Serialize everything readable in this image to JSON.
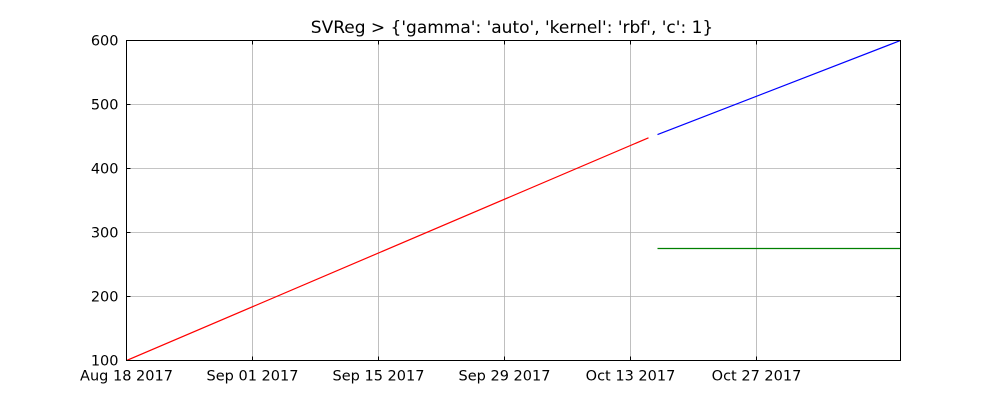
{
  "chart_data": {
    "type": "line",
    "title": "SVReg > {'gamma': 'auto', 'kernel': 'rbf', 'c': 1}",
    "xlabel": "",
    "ylabel": "",
    "x_axis_type": "date",
    "xlim": [
      "2017-08-18",
      "2017-11-12"
    ],
    "ylim": [
      100,
      600
    ],
    "grid": true,
    "x_ticks": [
      {
        "date": "2017-08-18",
        "label": "Aug 18 2017"
      },
      {
        "date": "2017-09-01",
        "label": "Sep 01 2017"
      },
      {
        "date": "2017-09-15",
        "label": "Sep 15 2017"
      },
      {
        "date": "2017-09-29",
        "label": "Sep 29 2017"
      },
      {
        "date": "2017-10-13",
        "label": "Oct 13 2017"
      },
      {
        "date": "2017-10-27",
        "label": "Oct 27 2017"
      }
    ],
    "y_ticks": [
      100,
      200,
      300,
      400,
      500,
      600
    ],
    "series": [
      {
        "color": "#ff0000",
        "x": [
          "2017-08-18",
          "2017-10-15"
        ],
        "y": [
          100,
          448
        ]
      },
      {
        "color": "#0000ff",
        "x": [
          "2017-10-16",
          "2017-11-12"
        ],
        "y": [
          453,
          600
        ]
      },
      {
        "color": "#008000",
        "x": [
          "2017-10-16",
          "2017-11-12"
        ],
        "y": [
          275,
          275
        ]
      }
    ]
  }
}
